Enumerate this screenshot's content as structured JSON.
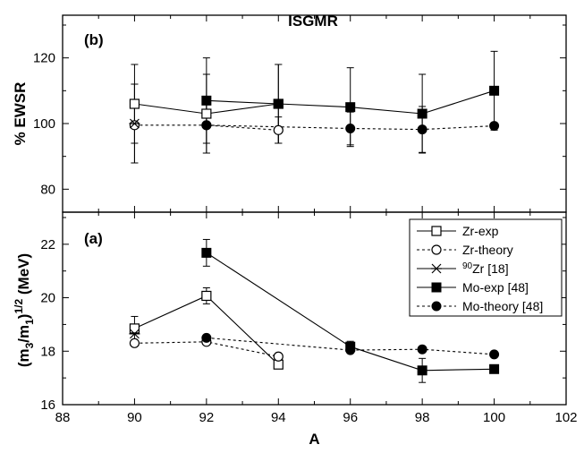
{
  "chart_data": [
    {
      "panel": "(b)",
      "type": "scatter",
      "title": "ISGMR",
      "ylabel": "% EWSR",
      "xlim": [
        88,
        102
      ],
      "ylim": [
        73,
        133
      ],
      "x_ticks": [
        "88",
        "90",
        "92",
        "94",
        "96",
        "98",
        "100",
        "102"
      ],
      "y_ticks": [
        "80",
        "100",
        "120"
      ],
      "series": [
        {
          "name": "Zr-exp",
          "marker": "open-square",
          "line": "solid",
          "x": [
            90,
            92,
            94
          ],
          "y": [
            106,
            103,
            106
          ],
          "err": [
            12,
            12,
            12
          ]
        },
        {
          "name": "Zr-theory",
          "marker": "open-circle",
          "line": "dashed",
          "x": [
            90,
            92,
            94
          ],
          "y": [
            99.5,
            99.5,
            98
          ],
          "err": [
            null,
            null,
            null
          ]
        },
        {
          "name": "90Zr [18]",
          "marker": "star",
          "line": "none",
          "x": [
            90
          ],
          "y": [
            100
          ],
          "err": [
            12
          ]
        },
        {
          "name": "Mo-exp [48]",
          "marker": "filled-square",
          "line": "solid",
          "x": [
            92,
            94,
            96,
            98,
            100
          ],
          "y": [
            107,
            106,
            105,
            103,
            110
          ],
          "err": [
            13,
            12,
            12,
            12,
            12
          ]
        },
        {
          "name": "Mo-theory [48]",
          "marker": "filled-circle",
          "line": "dashed",
          "x": [
            92,
            96,
            98,
            100
          ],
          "y": [
            99.5,
            98.5,
            98.2,
            99.3
          ],
          "err": [
            null,
            null,
            null,
            null
          ]
        }
      ],
      "extra_errorbars": [
        {
          "x": 90,
          "y": 100,
          "err": 12
        },
        {
          "x": 94,
          "y": 98,
          "err": 4
        },
        {
          "x": 92,
          "y": 99.5,
          "err": 8.5
        },
        {
          "x": 96,
          "y": 98.5,
          "err": 5
        },
        {
          "x": 98,
          "y": 98.2,
          "err": 7
        }
      ]
    },
    {
      "panel": "(a)",
      "type": "scatter",
      "xlabel": "A",
      "ylabel_main": "(m",
      "ylabel_sub1": "3",
      "ylabel_mid": "/m",
      "ylabel_sub2": "1",
      "ylabel_close": ")",
      "ylabel_sup": "1/2",
      "ylabel_unit": "(MeV)",
      "xlim": [
        88,
        102
      ],
      "ylim": [
        16,
        23.2
      ],
      "x_ticks": [
        "88",
        "90",
        "92",
        "94",
        "96",
        "98",
        "100",
        "102"
      ],
      "y_ticks": [
        "16",
        "18",
        "20",
        "22"
      ],
      "series": [
        {
          "name": "Zr-exp",
          "marker": "open-square",
          "line": "solid",
          "x": [
            90,
            92,
            94
          ],
          "y": [
            18.85,
            20.07,
            17.5
          ],
          "err": [
            0.45,
            0.3,
            0.15
          ]
        },
        {
          "name": "Zr-theory",
          "marker": "open-circle",
          "line": "dashed",
          "x": [
            90,
            92,
            94
          ],
          "y": [
            18.3,
            18.35,
            17.8
          ],
          "err": [
            null,
            null,
            null
          ]
        },
        {
          "name": "90Zr [18]",
          "marker": "star",
          "line": "none",
          "x": [
            90
          ],
          "y": [
            18.65
          ],
          "err": [
            null
          ]
        },
        {
          "name": "Mo-exp [48]",
          "marker": "filled-square",
          "line": "solid",
          "x": [
            92,
            96,
            98,
            100
          ],
          "y": [
            21.68,
            18.17,
            17.28,
            17.33
          ],
          "err": [
            0.5,
            0.2,
            0.45,
            0.15
          ]
        },
        {
          "name": "Mo-theory [48]",
          "marker": "filled-circle",
          "line": "dashed",
          "x": [
            92,
            96,
            98,
            100
          ],
          "y": [
            18.5,
            18.04,
            18.07,
            17.88
          ],
          "err": [
            null,
            null,
            null,
            null
          ]
        }
      ],
      "legend": {
        "placement": "top-right",
        "entries": [
          {
            "pre": "",
            "sup": "",
            "text": "Zr-exp",
            "marker": "open-square",
            "line": "solid"
          },
          {
            "pre": "",
            "sup": "",
            "text": "Zr-theory",
            "marker": "open-circle",
            "line": "dashed"
          },
          {
            "pre": "",
            "sup": "90",
            "text": "Zr [18]",
            "marker": "star",
            "line": "solid"
          },
          {
            "pre": "",
            "sup": "",
            "text": "Mo-exp [48]",
            "marker": "filled-square",
            "line": "solid"
          },
          {
            "pre": "",
            "sup": "",
            "text": "Mo-theory [48]",
            "marker": "filled-circle",
            "line": "dashed"
          }
        ]
      }
    }
  ]
}
